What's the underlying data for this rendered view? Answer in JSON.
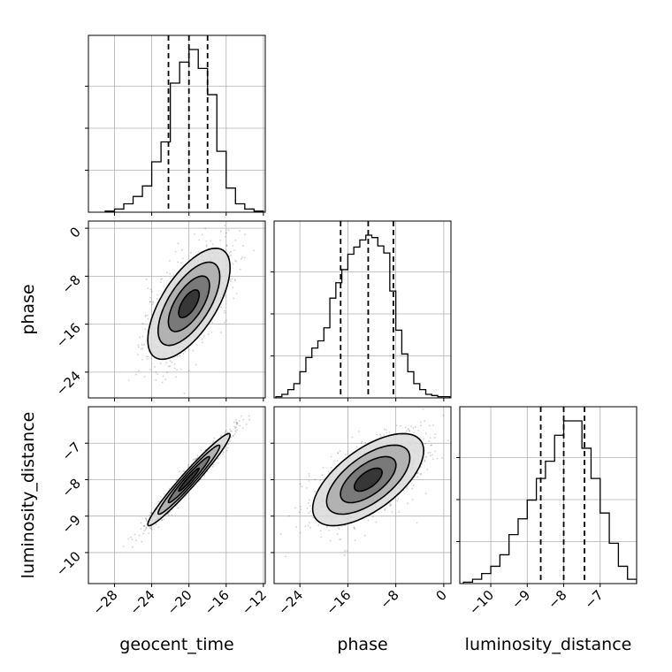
{
  "chart_data": {
    "type": "corner",
    "parameters": [
      "geocent_time",
      "phase",
      "luminosity_distance"
    ],
    "axis_labels": {
      "geocent_time": "geocent_time",
      "phase": "phase",
      "luminosity_distance": "luminosity_distance"
    },
    "ranges": {
      "geocent_time": [
        -30.8,
        -11.8
      ],
      "phase": [
        -28.3,
        1.2
      ],
      "luminosity_distance": [
        -10.85,
        -6.0
      ]
    },
    "ticks": {
      "geocent_time": [
        -28,
        -24,
        -20,
        -16,
        -12
      ],
      "phase": [
        -24,
        -16,
        -8,
        0
      ],
      "luminosity_distance": [
        -10,
        -9,
        -8,
        -7
      ]
    },
    "tick_labels": {
      "geocent_time": [
        "−28",
        "−24",
        "−20",
        "−16",
        "−12"
      ],
      "phase": [
        "−24",
        "−16",
        "−8",
        "0"
      ],
      "luminosity_distance": [
        "−10",
        "−9",
        "−8",
        "−7"
      ]
    },
    "quantiles": {
      "geocent_time": [
        -22.2,
        -20.0,
        -18.0
      ],
      "phase": [
        -17.2,
        -12.6,
        -8.4
      ],
      "luminosity_distance": [
        -8.63,
        -8.0,
        -7.43
      ]
    },
    "histograms": {
      "geocent_time": {
        "bins": [
          -29,
          -28,
          -27,
          -26,
          -25,
          -24,
          -23,
          -22,
          -21,
          -20,
          -19,
          -18,
          -17,
          -16,
          -15,
          -14,
          -13,
          -12
        ],
        "counts": [
          1,
          3,
          8,
          15,
          25,
          48,
          67,
          123,
          143,
          155,
          137,
          112,
          58,
          23,
          8,
          3,
          1
        ]
      },
      "phase": {
        "bins": [
          -28,
          -27,
          -26,
          -25,
          -24,
          -23,
          -22,
          -21,
          -20,
          -19,
          -18,
          -17,
          -16,
          -15,
          -14,
          -13,
          -12,
          -11,
          -10,
          -9,
          -8,
          -7,
          -6,
          -5,
          -4,
          -3,
          -2,
          -1,
          0,
          1
        ],
        "counts": [
          1,
          3,
          7,
          12,
          22,
          34,
          42,
          48,
          59,
          84,
          97,
          108,
          121,
          127,
          133,
          137,
          135,
          128,
          122,
          90,
          57,
          37,
          22,
          12,
          7,
          3,
          2,
          1,
          1
        ]
      },
      "luminosity_distance": {
        "bins": [
          -10.75,
          -10.5,
          -10.25,
          -10.0,
          -9.75,
          -9.5,
          -9.25,
          -9.0,
          -8.75,
          -8.5,
          -8.25,
          -8.0,
          -7.75,
          -7.5,
          -7.25,
          -7.0,
          -6.75,
          -6.5,
          -6.25,
          -6.0
        ],
        "counts": [
          1,
          3,
          7,
          12,
          20,
          34,
          45,
          58,
          73,
          85,
          103,
          113,
          113,
          94,
          73,
          49,
          28,
          12,
          3
        ]
      }
    },
    "contour_levels_sigma": [
      0.5,
      1.0,
      1.5,
      2.0
    ],
    "grid": true
  }
}
